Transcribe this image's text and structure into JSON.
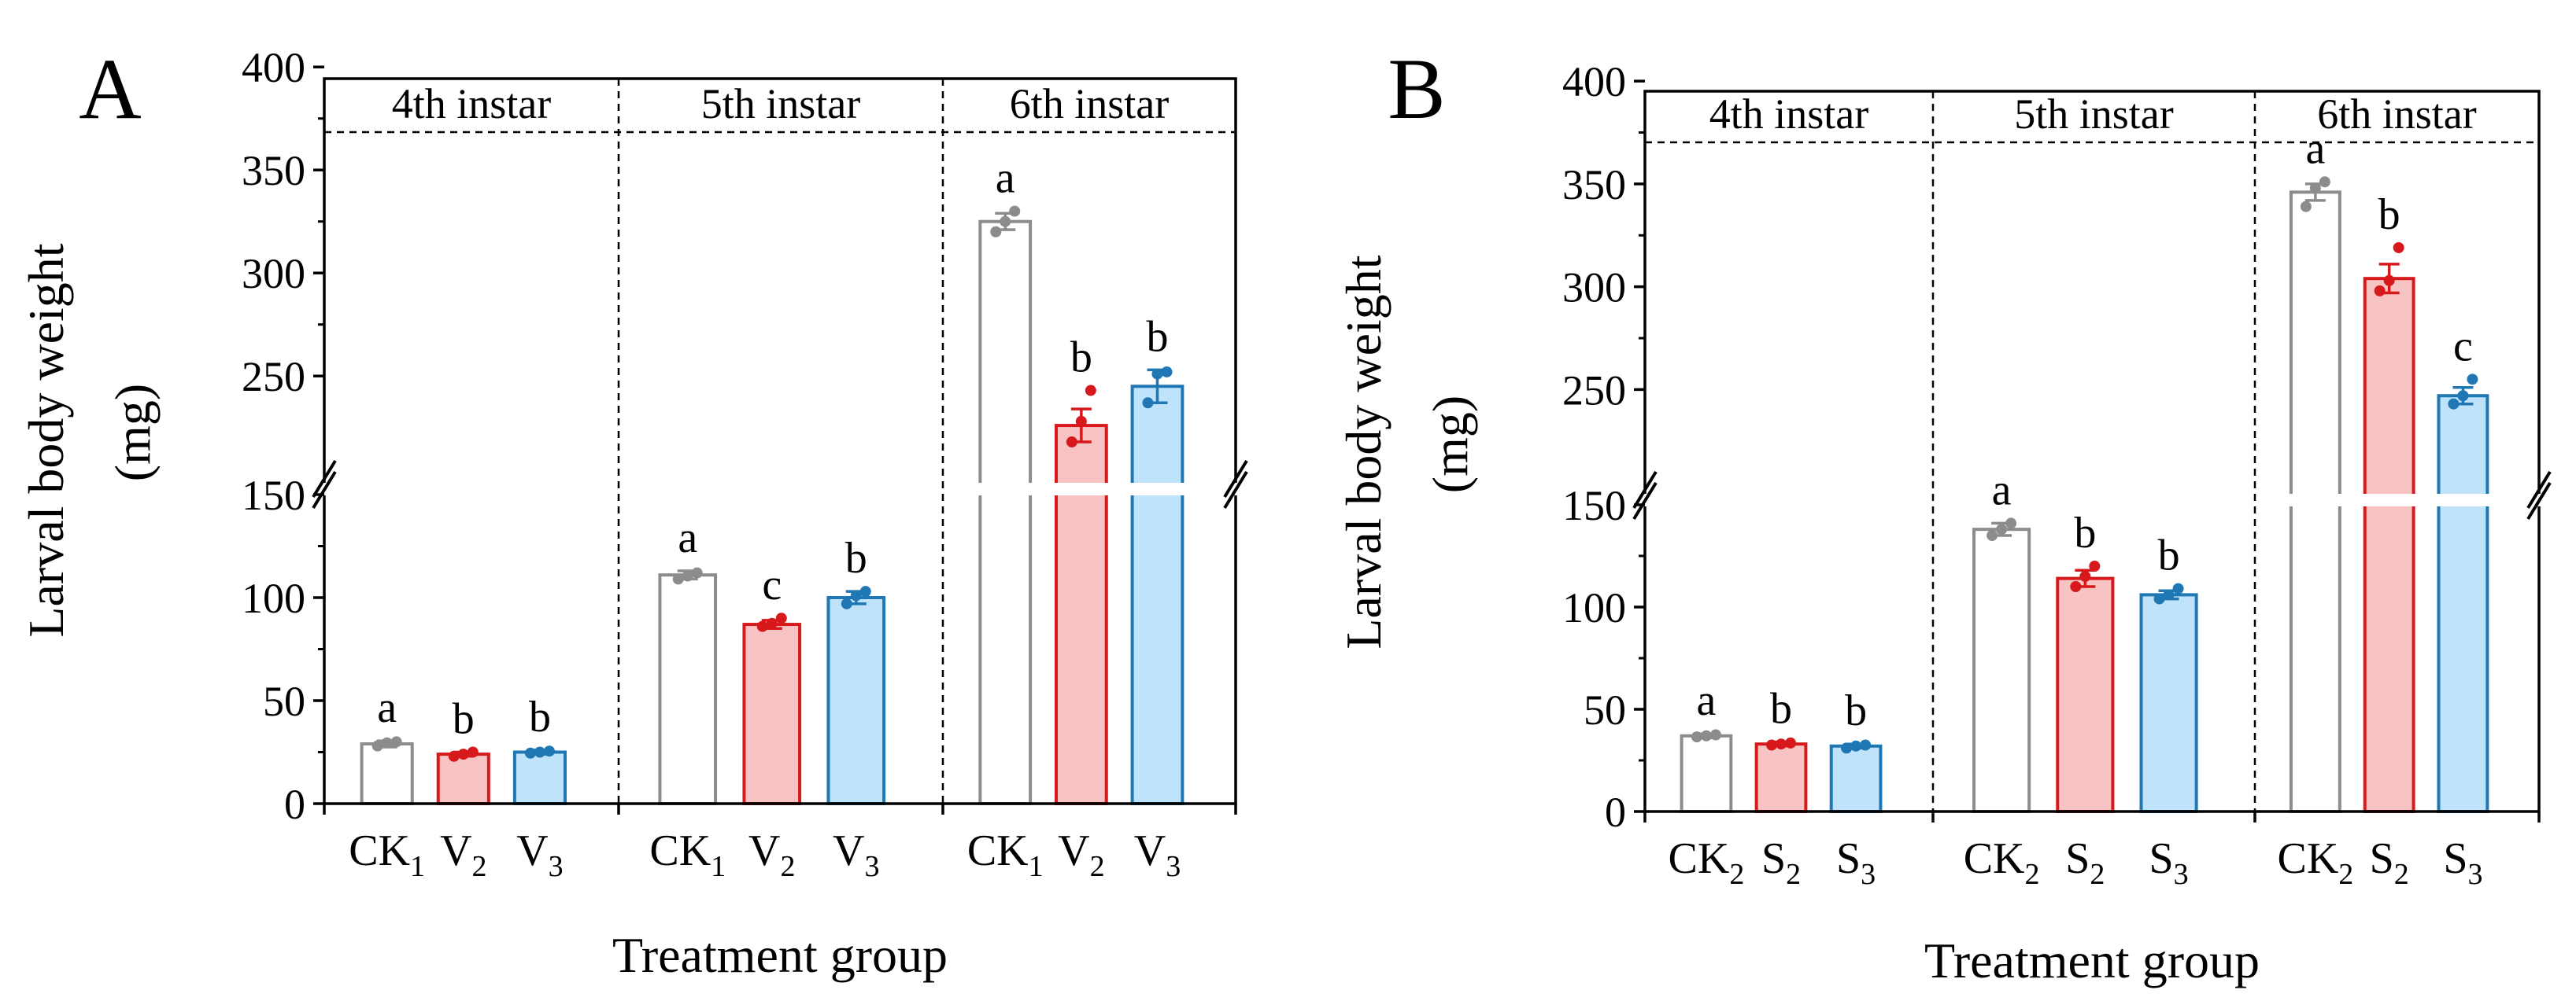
{
  "chart_data": [
    {
      "panel": "A",
      "type": "bar",
      "ylabel_line1": "Larval body weight",
      "ylabel_line2": "(mg)",
      "xlabel": "Treatment group",
      "ylim": [
        0,
        400
      ],
      "axis_break": [
        150,
        210
      ],
      "yticks_lower": [
        0,
        50,
        100,
        150
      ],
      "yticks_upper": [
        250,
        300,
        350,
        400
      ],
      "tick_labels": [
        "0",
        "50",
        "100",
        "150",
        "250",
        "300",
        "350",
        "400"
      ],
      "colors": {
        "CK": "#8c8c8c",
        "T2": "#d7191c",
        "T3": "#1f78b4"
      },
      "fills": {
        "CK": "#ffffff",
        "T2": "#f8c3c3",
        "T3": "#bfe3fa"
      },
      "groups": [
        {
          "label": "4th instar",
          "bars": [
            {
              "cat": "CK",
              "sub": "1",
              "series": "CK",
              "value": 29,
              "err": 1.5,
              "points": [
                28,
                29.5,
                30
              ],
              "sig": "a"
            },
            {
              "cat": "V",
              "sub": "2",
              "series": "T2",
              "value": 24,
              "err": 1,
              "points": [
                23,
                24,
                25
              ],
              "sig": "b"
            },
            {
              "cat": "V",
              "sub": "3",
              "series": "T3",
              "value": 25,
              "err": 1,
              "points": [
                24.5,
                25,
                25.5
              ],
              "sig": "b"
            }
          ]
        },
        {
          "label": "5th  instar",
          "bars": [
            {
              "cat": "CK",
              "sub": "1",
              "series": "CK",
              "value": 111,
              "err": 2,
              "points": [
                109,
                110.5,
                112
              ],
              "sig": "a"
            },
            {
              "cat": "V",
              "sub": "2",
              "series": "T2",
              "value": 87,
              "err": 2,
              "points": [
                86,
                87.5,
                90
              ],
              "sig": "c"
            },
            {
              "cat": "V",
              "sub": "3",
              "series": "T3",
              "value": 100,
              "err": 3,
              "points": [
                97,
                101,
                103
              ],
              "sig": "b"
            }
          ]
        },
        {
          "label": "6th  instar",
          "bars": [
            {
              "cat": "CK",
              "sub": "1",
              "series": "CK",
              "value": 325,
              "err": 4,
              "points": [
                320,
                325,
                330
              ],
              "sig": "a"
            },
            {
              "cat": "V",
              "sub": "2",
              "series": "T2",
              "value": 226,
              "err": 8,
              "points": [
                218,
                228,
                243
              ],
              "sig": "b"
            },
            {
              "cat": "V",
              "sub": "3",
              "series": "T3",
              "value": 245,
              "err": 8,
              "points": [
                237,
                251,
                252
              ],
              "sig": "b"
            }
          ]
        }
      ]
    },
    {
      "panel": "B",
      "type": "bar",
      "ylabel_line1": "Larval body weight",
      "ylabel_line2": "(mg)",
      "xlabel": "Treatment group",
      "ylim": [
        0,
        400
      ],
      "axis_break": [
        150,
        210
      ],
      "yticks_lower": [
        0,
        50,
        100,
        150
      ],
      "yticks_upper": [
        250,
        300,
        350,
        400
      ],
      "tick_labels": [
        "0",
        "50",
        "100",
        "150",
        "250",
        "300",
        "350",
        "400"
      ],
      "colors": {
        "CK": "#8c8c8c",
        "T2": "#d7191c",
        "T3": "#1f78b4"
      },
      "fills": {
        "CK": "#ffffff",
        "T2": "#f8c3c3",
        "T3": "#bfe3fa"
      },
      "groups": [
        {
          "label": "4th instar",
          "bars": [
            {
              "cat": "CK",
              "sub": "2",
              "series": "CK",
              "value": 37,
              "err": 1,
              "points": [
                36.5,
                37,
                37.5
              ],
              "sig": "a"
            },
            {
              "cat": "S",
              "sub": "2",
              "series": "T2",
              "value": 33,
              "err": 1,
              "points": [
                32.5,
                33,
                33.5
              ],
              "sig": "b"
            },
            {
              "cat": "S",
              "sub": "3",
              "series": "T3",
              "value": 32,
              "err": 1,
              "points": [
                31,
                32,
                32.5
              ],
              "sig": "b"
            }
          ]
        },
        {
          "label": "5th  instar",
          "bars": [
            {
              "cat": "CK",
              "sub": "2",
              "series": "CK",
              "value": 138,
              "err": 3,
              "points": [
                135,
                138,
                141
              ],
              "sig": "a"
            },
            {
              "cat": "S",
              "sub": "2",
              "series": "T2",
              "value": 114,
              "err": 4,
              "points": [
                110,
                115,
                120
              ],
              "sig": "b"
            },
            {
              "cat": "S",
              "sub": "3",
              "series": "T3",
              "value": 106,
              "err": 2,
              "points": [
                104,
                106,
                109
              ],
              "sig": "b"
            }
          ]
        },
        {
          "label": "6th  instar",
          "bars": [
            {
              "cat": "CK",
              "sub": "2",
              "series": "CK",
              "value": 346,
              "err": 4,
              "points": [
                339,
                348,
                351
              ],
              "sig": "a"
            },
            {
              "cat": "S",
              "sub": "2",
              "series": "T2",
              "value": 304,
              "err": 7,
              "points": [
                298,
                303,
                319
              ],
              "sig": "b"
            },
            {
              "cat": "S",
              "sub": "3",
              "series": "T3",
              "value": 247,
              "err": 4,
              "points": [
                243,
                247,
                255
              ],
              "sig": "c"
            }
          ]
        }
      ]
    }
  ]
}
